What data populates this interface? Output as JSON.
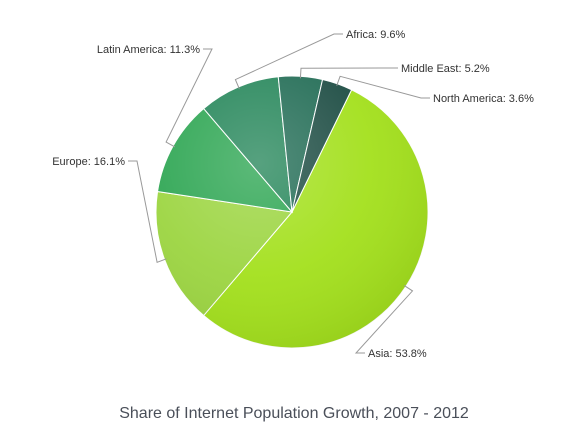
{
  "chart_data": {
    "type": "pie",
    "title": "Share of Internet Population Growth, 2007 - 2012",
    "start_angle_deg": -64,
    "slices": [
      {
        "label": "Asia: 53.8%",
        "category": "Asia",
        "value": 53.8,
        "color": "#a3e01c"
      },
      {
        "label": "Europe: 16.1%",
        "category": "Europe",
        "value": 16.1,
        "color": "#9cd541"
      },
      {
        "label": "Latin America: 11.3%",
        "category": "Latin America",
        "value": 11.3,
        "color": "#2ea653"
      },
      {
        "label": "Africa: 9.6%",
        "category": "Africa",
        "value": 9.6,
        "color": "#27875b"
      },
      {
        "label": "Middle East: 5.2%",
        "category": "Middle East",
        "value": 5.2,
        "color": "#236d56"
      },
      {
        "label": "North America: 3.6%",
        "category": "North America",
        "value": 3.6,
        "color": "#1f4e45"
      }
    ]
  }
}
